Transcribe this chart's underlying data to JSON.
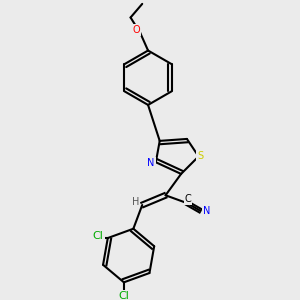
{
  "background_color": "#ebebeb",
  "bond_color": "#000000",
  "bond_lw": 1.5,
  "atom_colors": {
    "O": "#ff0000",
    "N": "#0000ff",
    "S": "#cccc00",
    "Cl": "#00aa00",
    "C": "#000000",
    "H": "#555555"
  },
  "font_size": 7,
  "font_size_small": 6
}
